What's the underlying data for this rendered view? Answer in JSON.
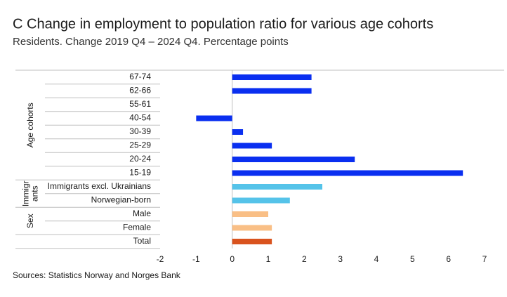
{
  "chart_data": {
    "type": "bar",
    "orientation": "horizontal",
    "title": "C Change in employment to population ratio for various age cohorts",
    "subtitle": "Residents. Change 2019 Q4 – 2024 Q4. Percentage points",
    "source": "Sources: Statistics Norway and Norges Bank",
    "groups": [
      {
        "label": [
          "Age cohorts"
        ],
        "color": "#0a2ff0",
        "categories": [
          "67-74",
          "62-66",
          "55-61",
          "40-54",
          "30-39",
          "25-29",
          "20-24",
          "15-19"
        ],
        "values": [
          2.2,
          2.2,
          0,
          -1.0,
          0.3,
          1.1,
          3.4,
          6.4
        ]
      },
      {
        "label": [
          "Immigr",
          "ants"
        ],
        "color": "#55c3e9",
        "categories": [
          "Immigrants excl. Ukrainians",
          "Norwegian-born"
        ],
        "values": [
          2.5,
          1.6
        ]
      },
      {
        "label": [
          "Sex"
        ],
        "color": "#f9bf86",
        "categories": [
          "Male",
          "Female"
        ],
        "values": [
          1.0,
          1.1
        ]
      },
      {
        "color": "#d9531e",
        "categories": [
          "Total"
        ],
        "values": [
          1.1
        ]
      }
    ],
    "xlim": [
      -2,
      7
    ],
    "xticks": [
      -2,
      -1,
      0,
      1,
      2,
      3,
      4,
      5,
      6,
      7
    ]
  }
}
